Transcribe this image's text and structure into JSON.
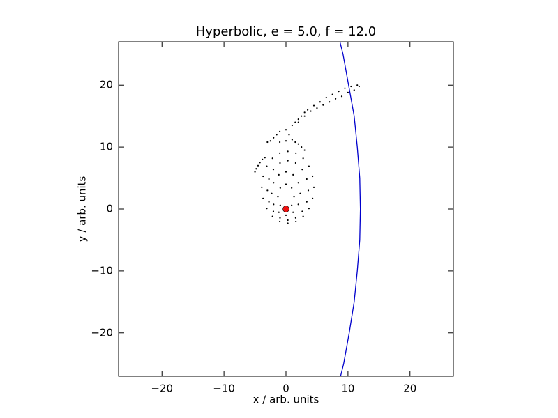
{
  "chart_data": {
    "type": "scatter",
    "title": "Hyperbolic, e = 5.0, f = 12.0",
    "x_label": "x / arb. units",
    "y_label": "y / arb. units",
    "xlim": [
      -27,
      27
    ],
    "ylim": [
      -27,
      27
    ],
    "xticks": [
      {
        "value": -20,
        "label": "−20"
      },
      {
        "value": -10,
        "label": "−10"
      },
      0,
      10,
      20
    ],
    "yticks": [
      {
        "value": -20,
        "label": "−20"
      },
      {
        "value": -10,
        "label": "−10"
      },
      0,
      10,
      20
    ],
    "grid": false,
    "series": [
      {
        "kind": "line",
        "color": "#0000cc",
        "x": [
          8.7,
          9.2,
          10.1,
          11.0,
          11.5,
          11.9,
          12.0,
          11.9,
          11.5,
          11.0,
          10.2,
          9.3,
          8.8
        ],
        "values": [
          27,
          25,
          20,
          15,
          10,
          5,
          0,
          -5,
          -10,
          -15,
          -20,
          -25,
          -27
        ]
      },
      {
        "kind": "dots",
        "color": "#000000",
        "x": [
          1.3,
          0.92,
          0,
          -0.92,
          -1.3,
          -0.92,
          0,
          0.92,
          2.3,
          1.99,
          1.15,
          0,
          -1.15,
          -1.99,
          -2.3,
          -1.99,
          -1.15,
          0,
          1.15,
          1.99,
          3.6,
          3.35,
          2.63,
          1.56,
          0.3,
          -0.96,
          -2.03,
          -2.75,
          -3.0,
          -2.75,
          -2.03,
          -0.96,
          0.3,
          1.56,
          2.63,
          3.35,
          4.5,
          4.29,
          3.7,
          2.77,
          1.6,
          0.3,
          -1.0,
          -2.17,
          -3.1,
          -3.69,
          -3.9,
          -3.69,
          -3.1,
          -2.17,
          -1.0,
          0.3,
          1.6,
          2.77,
          3.7,
          4.29,
          -5,
          -4.8,
          -4.5,
          -4.2,
          -3.8,
          -3.4,
          -3,
          -2.5,
          -2,
          -1.5,
          -1,
          0,
          0.5,
          1,
          1.5,
          2,
          2.5,
          3,
          -1,
          0,
          1,
          1.5,
          2,
          2.5,
          3,
          3.5,
          4.5,
          5.5,
          6.5,
          7.5,
          8.5,
          9.5,
          10.5,
          11.5,
          11.8,
          11,
          10,
          9,
          8,
          7,
          6,
          5,
          4,
          3,
          2
        ],
        "values": [
          2,
          3.41,
          4,
          3.41,
          2,
          0.59,
          0,
          0.59,
          2.5,
          4.25,
          5.53,
          6,
          5.53,
          4.25,
          2.5,
          0.75,
          -0.53,
          -1,
          -0.53,
          0.75,
          3,
          4.84,
          6.39,
          7.43,
          7.8,
          7.43,
          6.39,
          4.84,
          3,
          1.16,
          -0.39,
          -1.43,
          -1.8,
          -1.43,
          -0.39,
          1.16,
          3.5,
          5.29,
          6.91,
          8.19,
          9.02,
          9.3,
          9.02,
          8.19,
          6.91,
          5.29,
          3.5,
          1.71,
          0.09,
          -1.19,
          -2.02,
          -2.3,
          -2.02,
          -1.19,
          0.09,
          1.71,
          6,
          6.5,
          7,
          7.5,
          8,
          8.3,
          10.8,
          11,
          11.5,
          12,
          12.5,
          12.8,
          12,
          11.2,
          10.8,
          10.5,
          10,
          9.5,
          10.8,
          11,
          13.5,
          14,
          14.5,
          15,
          15.6,
          16,
          16.7,
          17.3,
          18,
          18.5,
          19,
          19.5,
          19.8,
          20,
          19.8,
          19.2,
          18.8,
          18.2,
          17.8,
          17.3,
          16.8,
          16.3,
          15.8,
          15,
          14
        ]
      },
      {
        "kind": "mass",
        "color": "#ee1111",
        "x": [
          0
        ],
        "values": [
          0
        ]
      }
    ]
  }
}
